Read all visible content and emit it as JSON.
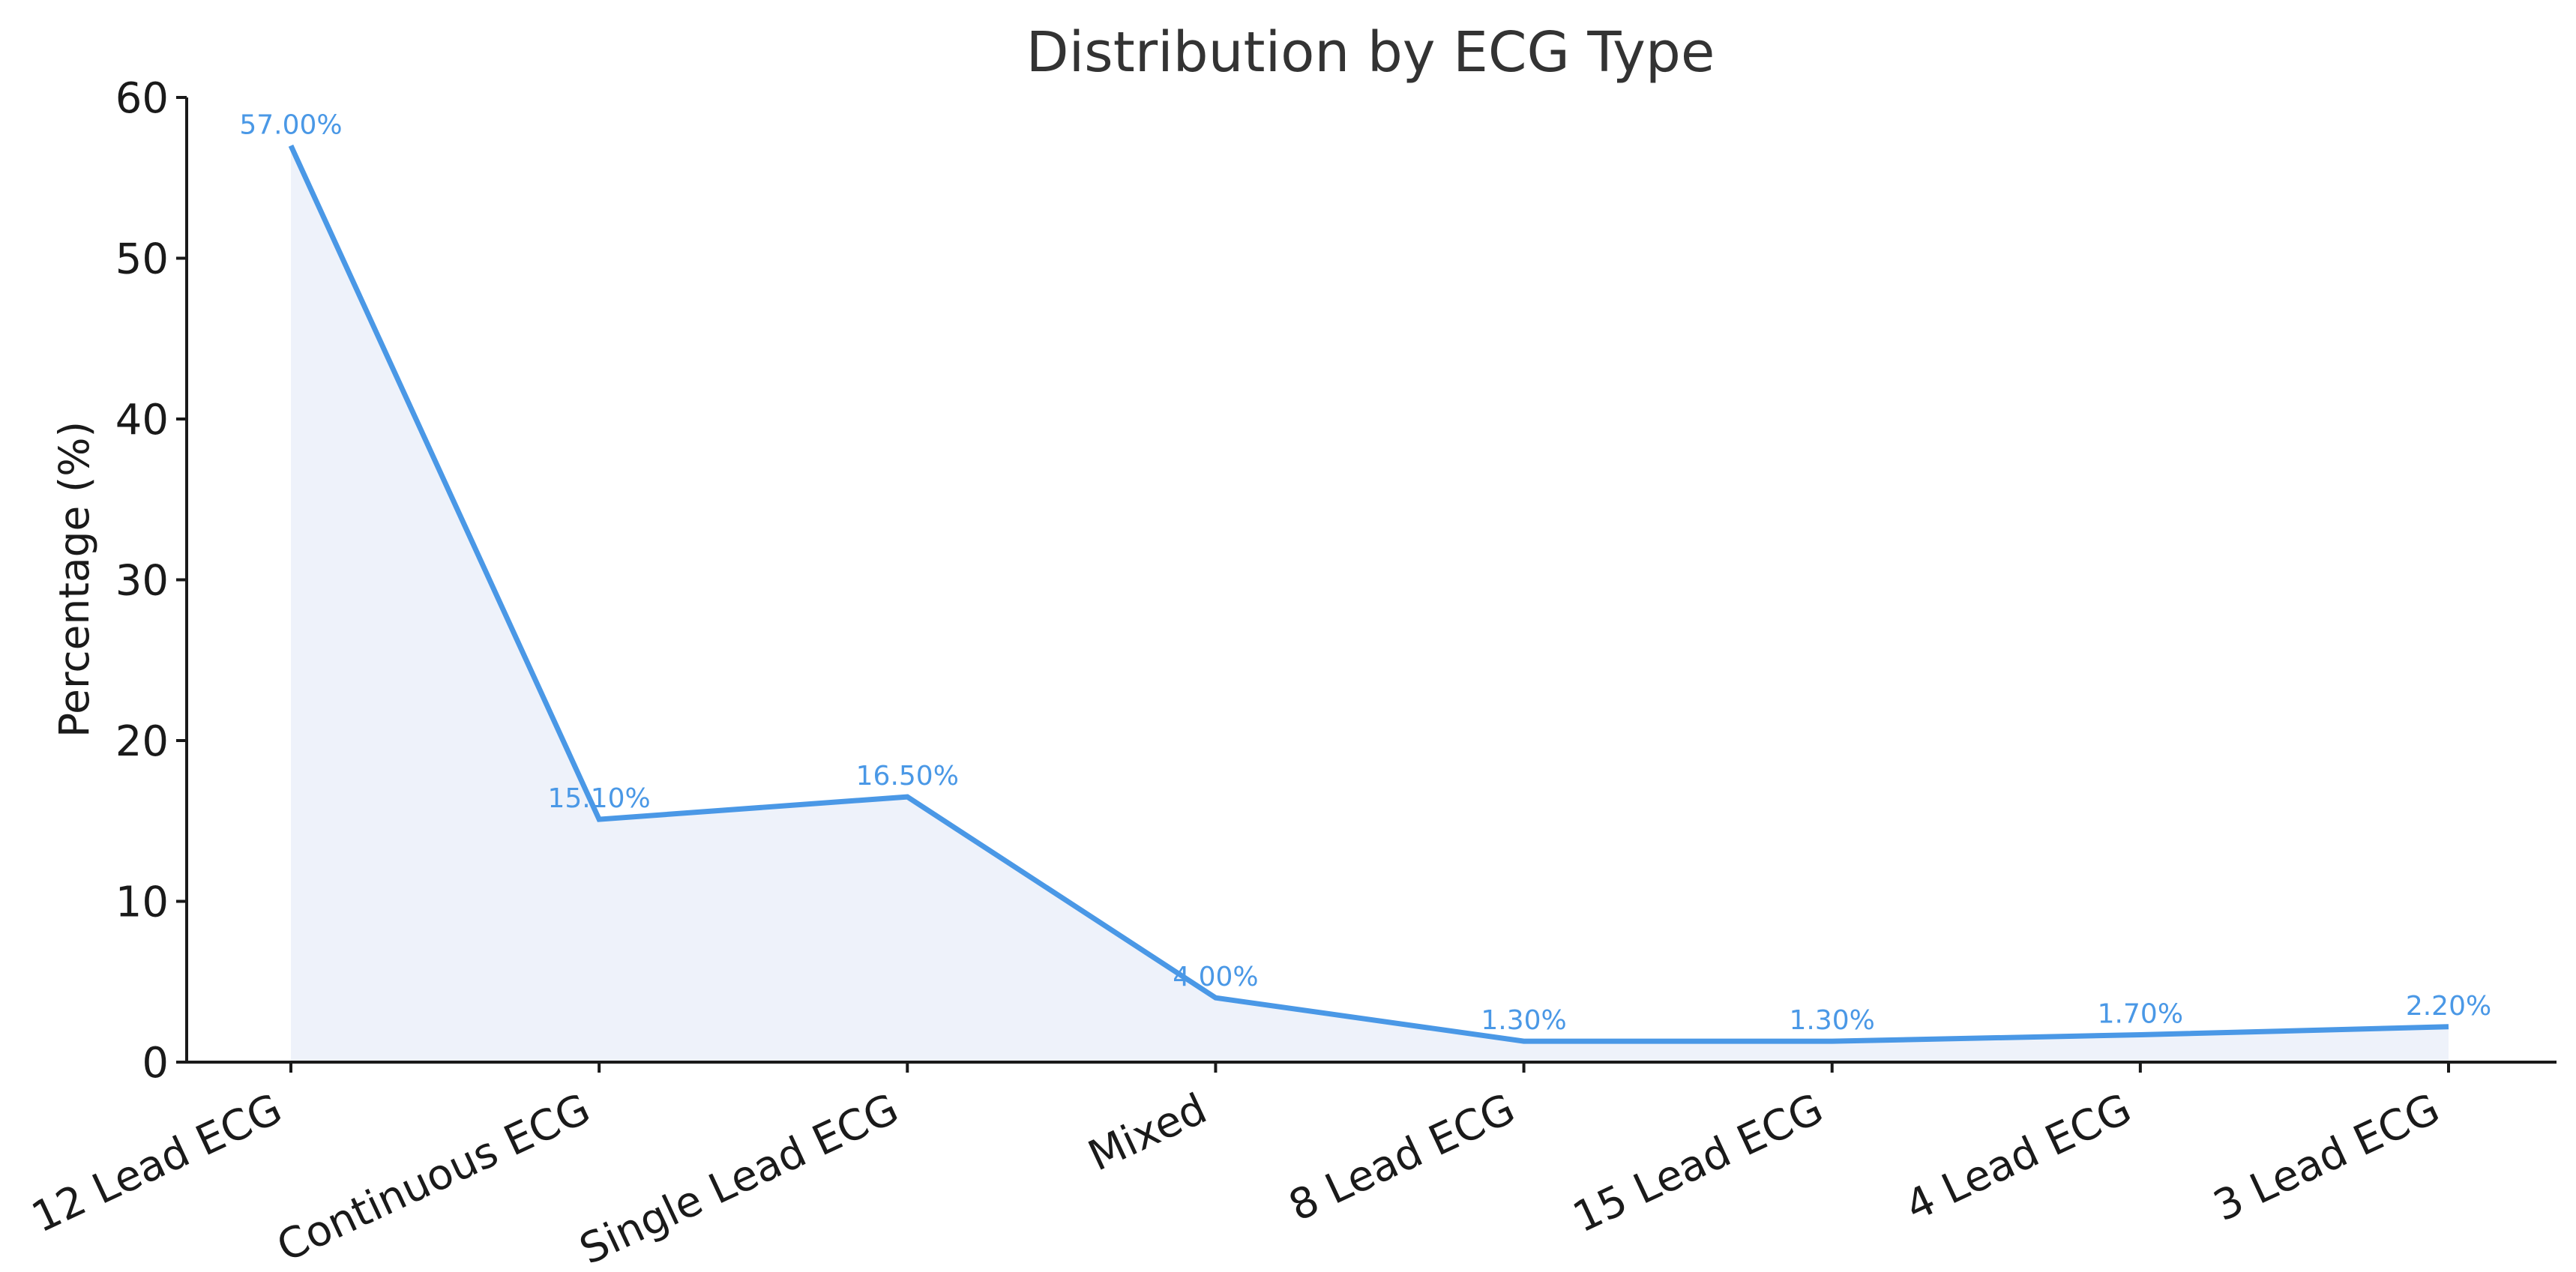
{
  "chart_data": {
    "type": "line",
    "title": "Distribution by ECG Type",
    "xlabel": "",
    "ylabel": "Percentage (%)",
    "ylim": [
      0,
      60
    ],
    "yticks": [
      0,
      10,
      20,
      30,
      40,
      50,
      60
    ],
    "categories": [
      "12 Lead ECG",
      "Continuous ECG",
      "Single Lead ECG",
      "Mixed",
      "8 Lead ECG",
      "15 Lead ECG",
      "4 Lead ECG",
      "3 Lead ECG"
    ],
    "values": [
      57.0,
      15.1,
      16.5,
      4.0,
      1.3,
      1.3,
      1.7,
      2.2
    ],
    "data_labels": [
      "57.00%",
      "15.10%",
      "16.50%",
      "4.00%",
      "1.30%",
      "1.30%",
      "1.70%",
      "2.20%"
    ],
    "grid": false,
    "area_fill": true,
    "colors": {
      "line": "#4a98e6",
      "fill": "#eef2fa",
      "label": "#4a98e6"
    }
  }
}
